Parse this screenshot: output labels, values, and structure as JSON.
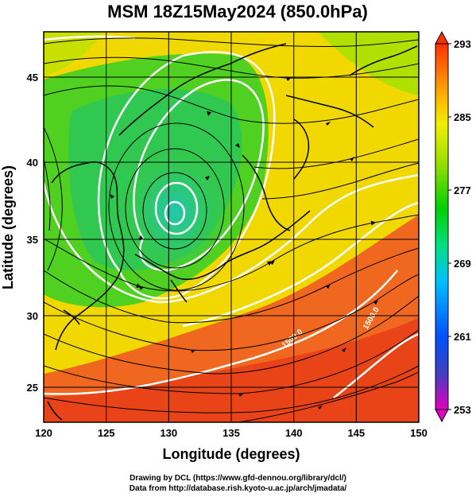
{
  "title": "MSM 18Z15May2024 (850.0hPa)",
  "chart_data": {
    "type": "heatmap",
    "title": "MSM 18Z15May2024 (850.0hPa)",
    "xlabel": "Longitude (degrees)",
    "ylabel": "Latitude  (degrees)",
    "xlim": [
      120,
      150
    ],
    "ylim": [
      22.4,
      47.6
    ],
    "x_ticks": [
      120,
      125,
      130,
      135,
      140,
      145,
      150
    ],
    "y_ticks": [
      25,
      30,
      35,
      40,
      45
    ],
    "grid": true,
    "colorbar": {
      "label_values": [
        293,
        285,
        277,
        269,
        261,
        253
      ],
      "range": [
        253,
        293
      ],
      "colors": [
        "#e000c0",
        "#4040c0",
        "#0050ff",
        "#00c0ff",
        "#00e080",
        "#00d000",
        "#a0e000",
        "#f0f000",
        "#ffb000",
        "#ff7000",
        "#ff3000"
      ]
    },
    "cyclone_center": {
      "lon": 130.3,
      "lat": 36.7
    },
    "contour_labels": [
      "1500.0",
      "1500.0"
    ]
  },
  "credits": {
    "line1": "Drawing by DCL (https://www.gfd-dennou.org/library/dcl/)",
    "line2": "Data from http://database.rish.kyoto-u.ac.jp/arch/jmadata/"
  }
}
